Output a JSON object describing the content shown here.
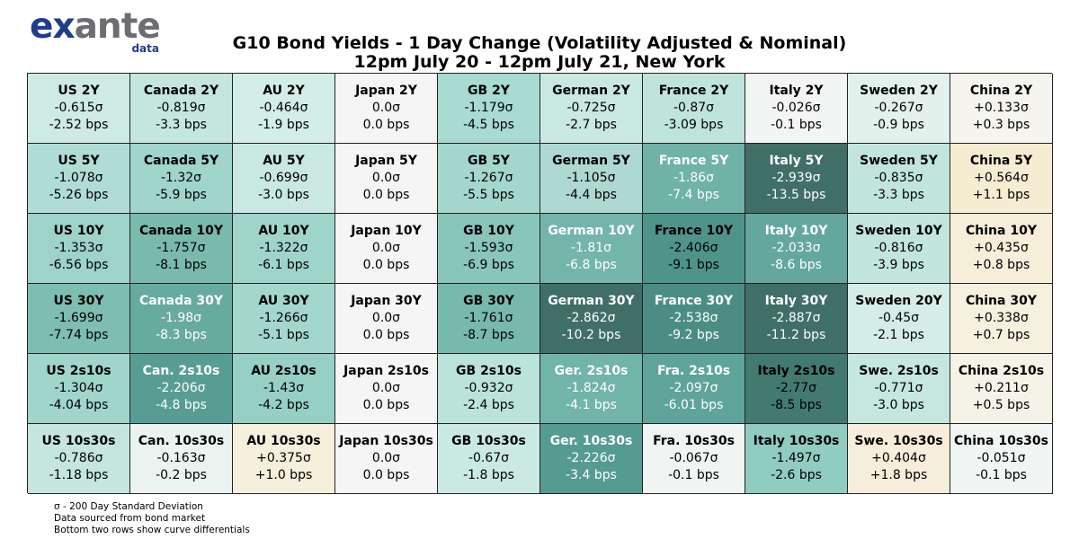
{
  "logo": {
    "part1": "ex",
    "part2": "ante",
    "sub": "data"
  },
  "title_line1": "G10 Bond Yields - 1 Day Change (Volatility Adjusted & Nominal)",
  "title_line2": "12pm July 20 - 12pm July 21, New York",
  "colors": {
    "neutral": "#f5f5f5",
    "pale_green": "#cdeae4",
    "light_green": "#a8dbd1",
    "mid_green": "#86cbbf",
    "teal": "#5ea8a0",
    "dark_teal": "#46877f",
    "darkest_teal": "#3c6e66",
    "pale_yellow": "#f6ecd2",
    "pale_grey_green": "#eef4f2"
  },
  "notes": [
    "σ - 200 Day Standard Deviation",
    "Data sourced from bond market",
    "Bottom two rows show curve differentials"
  ],
  "chart_data": {
    "type": "table",
    "title": "G10 Bond Yields - 1 Day Change (Volatility Adjusted & Nominal)",
    "subtitle": "12pm July 20 - 12pm July 21, New York",
    "rows": [
      [
        {
          "label": "US 2Y",
          "sigma": "-0.615σ",
          "bps": "-2.52 bps",
          "bg": "#cdeae4",
          "fg": "#000000"
        },
        {
          "label": "Canada 2Y",
          "sigma": "-0.819σ",
          "bps": "-3.3 bps",
          "bg": "#c4e6df",
          "fg": "#000000"
        },
        {
          "label": "AU 2Y",
          "sigma": "-0.464σ",
          "bps": "-1.9 bps",
          "bg": "#d3ede7",
          "fg": "#000000"
        },
        {
          "label": "Japan 2Y",
          "sigma": "0.0σ",
          "bps": "0.0 bps",
          "bg": "#f5f5f5",
          "fg": "#000000"
        },
        {
          "label": "GB 2Y",
          "sigma": "-1.179σ",
          "bps": "-4.5 bps",
          "bg": "#a8dbd1",
          "fg": "#000000"
        },
        {
          "label": "German 2Y",
          "sigma": "-0.725σ",
          "bps": "-2.7 bps",
          "bg": "#c8e8e1",
          "fg": "#000000"
        },
        {
          "label": "France 2Y",
          "sigma": "-0.87σ",
          "bps": "-3.09 bps",
          "bg": "#bfe4dc",
          "fg": "#000000"
        },
        {
          "label": "Italy 2Y",
          "sigma": "-0.026σ",
          "bps": "-0.1 bps",
          "bg": "#f3f5f4",
          "fg": "#000000"
        },
        {
          "label": "Sweden 2Y",
          "sigma": "-0.267σ",
          "bps": "-0.9 bps",
          "bg": "#e3f1ed",
          "fg": "#000000"
        },
        {
          "label": "China 2Y",
          "sigma": "+0.133σ",
          "bps": "+0.3 bps",
          "bg": "#f5f4ef",
          "fg": "#000000"
        }
      ],
      [
        {
          "label": "US 5Y",
          "sigma": "-1.078σ",
          "bps": "-5.26 bps",
          "bg": "#afddd4",
          "fg": "#000000"
        },
        {
          "label": "Canada 5Y",
          "sigma": "-1.32σ",
          "bps": "-5.9 bps",
          "bg": "#9fd5ca",
          "fg": "#000000"
        },
        {
          "label": "AU 5Y",
          "sigma": "-0.699σ",
          "bps": "-3.0 bps",
          "bg": "#c9e8e1",
          "fg": "#000000"
        },
        {
          "label": "Japan 5Y",
          "sigma": "0.0σ",
          "bps": "0.0 bps",
          "bg": "#f5f5f5",
          "fg": "#000000"
        },
        {
          "label": "GB 5Y",
          "sigma": "-1.267σ",
          "bps": "-5.5 bps",
          "bg": "#a3d7cc",
          "fg": "#000000"
        },
        {
          "label": "German 5Y",
          "sigma": "-1.105σ",
          "bps": "-4.4 bps",
          "bg": "#add9d0",
          "fg": "#000000"
        },
        {
          "label": "France 5Y",
          "sigma": "-1.86σ",
          "bps": "-7.4 bps",
          "bg": "#6fb2a8",
          "fg": "#ffffff"
        },
        {
          "label": "Italy 5Y",
          "sigma": "-2.939σ",
          "bps": "-13.5 bps",
          "bg": "#3f6f66",
          "fg": "#ffffff"
        },
        {
          "label": "Sweden 5Y",
          "sigma": "-0.835σ",
          "bps": "-3.3 bps",
          "bg": "#c1e5dd",
          "fg": "#000000"
        },
        {
          "label": "China 5Y",
          "sigma": "+0.564σ",
          "bps": "+1.1 bps",
          "bg": "#f6ecd2",
          "fg": "#000000"
        }
      ],
      [
        {
          "label": "US 10Y",
          "sigma": "-1.353σ",
          "bps": "-6.56 bps",
          "bg": "#9dd3c8",
          "fg": "#000000"
        },
        {
          "label": "Canada 10Y",
          "sigma": "-1.757σ",
          "bps": "-8.1 bps",
          "bg": "#79b9ae",
          "fg": "#000000"
        },
        {
          "label": "AU 10Y",
          "sigma": "-1.322σ",
          "bps": "-6.1 bps",
          "bg": "#9fd4c9",
          "fg": "#000000"
        },
        {
          "label": "Japan 10Y",
          "sigma": "0.0σ",
          "bps": "0.0 bps",
          "bg": "#f5f5f5",
          "fg": "#000000"
        },
        {
          "label": "GB 10Y",
          "sigma": "-1.593σ",
          "bps": "-6.9 bps",
          "bg": "#88c6bb",
          "fg": "#000000"
        },
        {
          "label": "German 10Y",
          "sigma": "-1.81σ",
          "bps": "-6.8 bps",
          "bg": "#73b5ab",
          "fg": "#ffffff"
        },
        {
          "label": "France 10Y",
          "sigma": "-2.406σ",
          "bps": "-9.1 bps",
          "bg": "#4f948b",
          "fg": "#000000"
        },
        {
          "label": "Italy 10Y",
          "sigma": "-2.033σ",
          "bps": "-8.6 bps",
          "bg": "#63a79e",
          "fg": "#ffffff"
        },
        {
          "label": "Sweden 10Y",
          "sigma": "-0.816σ",
          "bps": "-3.9 bps",
          "bg": "#c2e6de",
          "fg": "#000000"
        },
        {
          "label": "China 10Y",
          "sigma": "+0.435σ",
          "bps": "+0.8 bps",
          "bg": "#f6eed9",
          "fg": "#000000"
        }
      ],
      [
        {
          "label": "US 30Y",
          "sigma": "-1.699σ",
          "bps": "-7.74 bps",
          "bg": "#7ebdb2",
          "fg": "#000000"
        },
        {
          "label": "Canada 30Y",
          "sigma": "-1.98σ",
          "bps": "-8.3 bps",
          "bg": "#67aaa0",
          "fg": "#ffffff"
        },
        {
          "label": "AU 30Y",
          "sigma": "-1.266σ",
          "bps": "-5.1 bps",
          "bg": "#a3d7cc",
          "fg": "#000000"
        },
        {
          "label": "Japan 30Y",
          "sigma": "0.0σ",
          "bps": "0.0 bps",
          "bg": "#f5f5f5",
          "fg": "#000000"
        },
        {
          "label": "GB 30Y",
          "sigma": "-1.761σ",
          "bps": "-8.7 bps",
          "bg": "#78b9ae",
          "fg": "#000000"
        },
        {
          "label": "German 30Y",
          "sigma": "-2.862σ",
          "bps": "-10.2 bps",
          "bg": "#3f6f66",
          "fg": "#ffffff"
        },
        {
          "label": "France 30Y",
          "sigma": "-2.538σ",
          "bps": "-9.2 bps",
          "bg": "#4b8d84",
          "fg": "#ffffff"
        },
        {
          "label": "Italy 30Y",
          "sigma": "-2.887σ",
          "bps": "-11.2 bps",
          "bg": "#3f6f66",
          "fg": "#ffffff"
        },
        {
          "label": "Sweden 20Y",
          "sigma": "-0.45σ",
          "bps": "-2.1 bps",
          "bg": "#d5ede7",
          "fg": "#000000"
        },
        {
          "label": "China 30Y",
          "sigma": "+0.338σ",
          "bps": "+0.7 bps",
          "bg": "#f6f0df",
          "fg": "#000000"
        }
      ],
      [
        {
          "label": "US 2s10s",
          "sigma": "-1.304σ",
          "bps": "-4.04 bps",
          "bg": "#a0d5ca",
          "fg": "#000000"
        },
        {
          "label": "Can. 2s10s",
          "sigma": "-2.206σ",
          "bps": "-4.8 bps",
          "bg": "#589d94",
          "fg": "#ffffff"
        },
        {
          "label": "AU 2s10s",
          "sigma": "-1.43σ",
          "bps": "-4.2 bps",
          "bg": "#96cfc4",
          "fg": "#000000"
        },
        {
          "label": "Japan 2s10s",
          "sigma": "0.0σ",
          "bps": "0.0 bps",
          "bg": "#f5f5f5",
          "fg": "#000000"
        },
        {
          "label": "GB 2s10s",
          "sigma": "-0.932σ",
          "bps": "-2.4 bps",
          "bg": "#bbe3da",
          "fg": "#000000"
        },
        {
          "label": "Ger. 2s10s",
          "sigma": "-1.824σ",
          "bps": "-4.1 bps",
          "bg": "#71b4aa",
          "fg": "#ffffff"
        },
        {
          "label": "Fra. 2s10s",
          "sigma": "-2.097σ",
          "bps": "-6.01 bps",
          "bg": "#5fa49b",
          "fg": "#ffffff"
        },
        {
          "label": "Italy 2s10s",
          "sigma": "-2.77σ",
          "bps": "-8.5 bps",
          "bg": "#427a71",
          "fg": "#000000"
        },
        {
          "label": "Swe. 2s10s",
          "sigma": "-0.771σ",
          "bps": "-3.0 bps",
          "bg": "#c5e7e0",
          "fg": "#000000"
        },
        {
          "label": "China 2s10s",
          "sigma": "+0.211σ",
          "bps": "+0.5 bps",
          "bg": "#f5f2e8",
          "fg": "#000000"
        }
      ],
      [
        {
          "label": "US 10s30s",
          "sigma": "-0.786σ",
          "bps": "-1.18 bps",
          "bg": "#c4e6df",
          "fg": "#000000"
        },
        {
          "label": "Can. 10s30s",
          "sigma": "-0.163σ",
          "bps": "-0.2 bps",
          "bg": "#eaf3f0",
          "fg": "#000000"
        },
        {
          "label": "AU 10s30s",
          "sigma": "+0.375σ",
          "bps": "+1.0 bps",
          "bg": "#f6efdc",
          "fg": "#000000"
        },
        {
          "label": "Japan 10s30s",
          "sigma": "0.0σ",
          "bps": "0.0 bps",
          "bg": "#f5f5f5",
          "fg": "#000000"
        },
        {
          "label": "GB 10s30s",
          "sigma": "-0.67σ",
          "bps": "-1.8 bps",
          "bg": "#cae9e2",
          "fg": "#000000"
        },
        {
          "label": "Ger. 10s30s",
          "sigma": "-2.226σ",
          "bps": "-3.4 bps",
          "bg": "#569b92",
          "fg": "#ffffff"
        },
        {
          "label": "Fra. 10s30s",
          "sigma": "-0.067σ",
          "bps": "-0.1 bps",
          "bg": "#f0f5f3",
          "fg": "#000000"
        },
        {
          "label": "Italy 10s30s",
          "sigma": "-1.497σ",
          "bps": "-2.6 bps",
          "bg": "#90ccc1",
          "fg": "#000000"
        },
        {
          "label": "Swe. 10s30s",
          "sigma": "+0.404σ",
          "bps": "+1.8 bps",
          "bg": "#f6eeda",
          "fg": "#000000"
        },
        {
          "label": "China 10s30s",
          "sigma": "-0.051σ",
          "bps": "-0.1 bps",
          "bg": "#f1f5f3",
          "fg": "#000000"
        }
      ]
    ]
  }
}
